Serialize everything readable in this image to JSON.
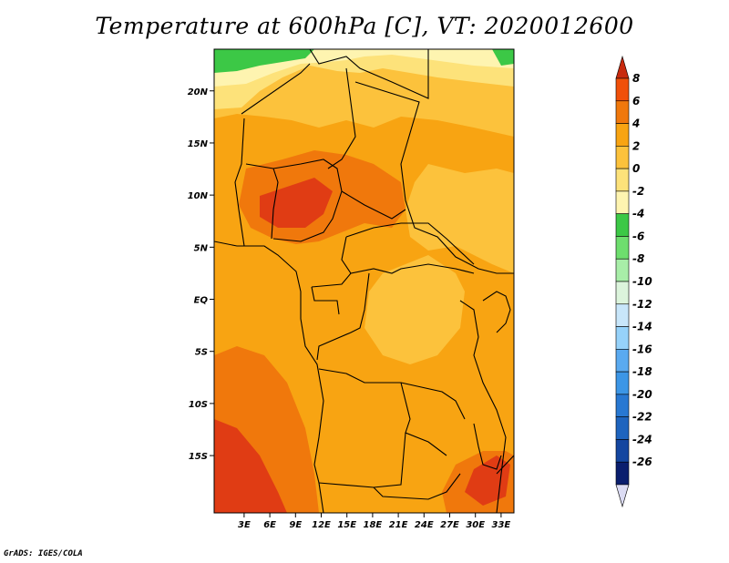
{
  "title": "Temperature at 600hPa [C], VT: 2020012600",
  "credit": "GrADS: IGES/COLA",
  "map": {
    "lat_range": [
      -20.5,
      24
    ],
    "lon_range": [
      -0.5,
      34.5
    ],
    "lat_labels": [
      "20N",
      "15N",
      "10N",
      "5N",
      "EQ",
      "5S",
      "10S",
      "15S"
    ],
    "lat_values": [
      20,
      15,
      10,
      5,
      0,
      -5,
      -10,
      -15
    ],
    "lon_labels": [
      "3E",
      "6E",
      "9E",
      "12E",
      "15E",
      "18E",
      "21E",
      "24E",
      "27E",
      "30E",
      "33E"
    ],
    "lon_values": [
      3,
      6,
      9,
      12,
      15,
      18,
      21,
      24,
      27,
      30,
      33
    ]
  },
  "colorbar": {
    "labels": [
      "8",
      "6",
      "4",
      "2",
      "0",
      "-2",
      "-4",
      "-6",
      "-8",
      "-10",
      "-12",
      "-14",
      "-16",
      "-18",
      "-20",
      "-22",
      "-24",
      "-26"
    ],
    "colors": [
      "#c82a0e",
      "#f0500a",
      "#f0780c",
      "#f8a412",
      "#fcc23c",
      "#fde27a",
      "#fef4b0",
      "#3cc846",
      "#6ede6e",
      "#a8eea8",
      "#dcf4dc",
      "#c8e6fa",
      "#96d2fa",
      "#5aaaf0",
      "#3c96e6",
      "#2878d2",
      "#1e64be",
      "#1446a0",
      "#0a1e6e",
      "#dcdcf4"
    ]
  },
  "field_colors": {
    "t6": "#f0500a",
    "t4": "#f0780c",
    "t2": "#f8a412",
    "t0": "#fcc23c",
    "tm2": "#fde27a",
    "tm4": "#fef4b0",
    "tm6": "#3cc846",
    "red": "#e03c14"
  }
}
